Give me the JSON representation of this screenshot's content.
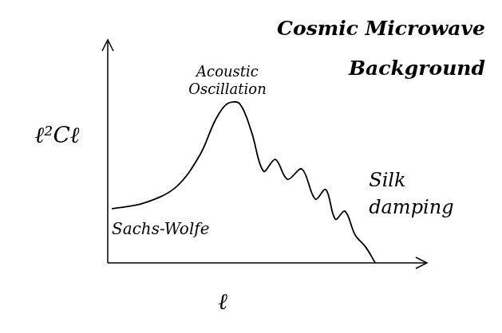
{
  "chart_data": {
    "type": "line",
    "title": "Cosmic Microwave Background",
    "x_label": "ℓ",
    "y_label": "ℓ²Cℓ",
    "x": [
      1.3,
      11.3,
      21.3,
      28.8,
      33.8,
      37.5,
      41.3,
      45.0,
      48.8,
      52.5,
      56.3,
      60.8,
      65.0,
      68.3,
      71.3,
      74.3,
      77.5,
      80.8,
      83.8
    ],
    "values": [
      24.3,
      26.8,
      33.9,
      48.2,
      64.3,
      71.4,
      71.4,
      58.9,
      41.1,
      46.4,
      37.5,
      42.1,
      28.6,
      32.9,
      19.6,
      23.2,
      12.5,
      7.1,
      0
    ],
    "xlim": [
      0,
      100
    ],
    "ylim": [
      0,
      100
    ],
    "tick_labels": false,
    "grid": false,
    "color": "#000000",
    "annotations": [
      "Acoustic Oscillation",
      "Sachs-Wolfe",
      "Silk damping"
    ]
  }
}
